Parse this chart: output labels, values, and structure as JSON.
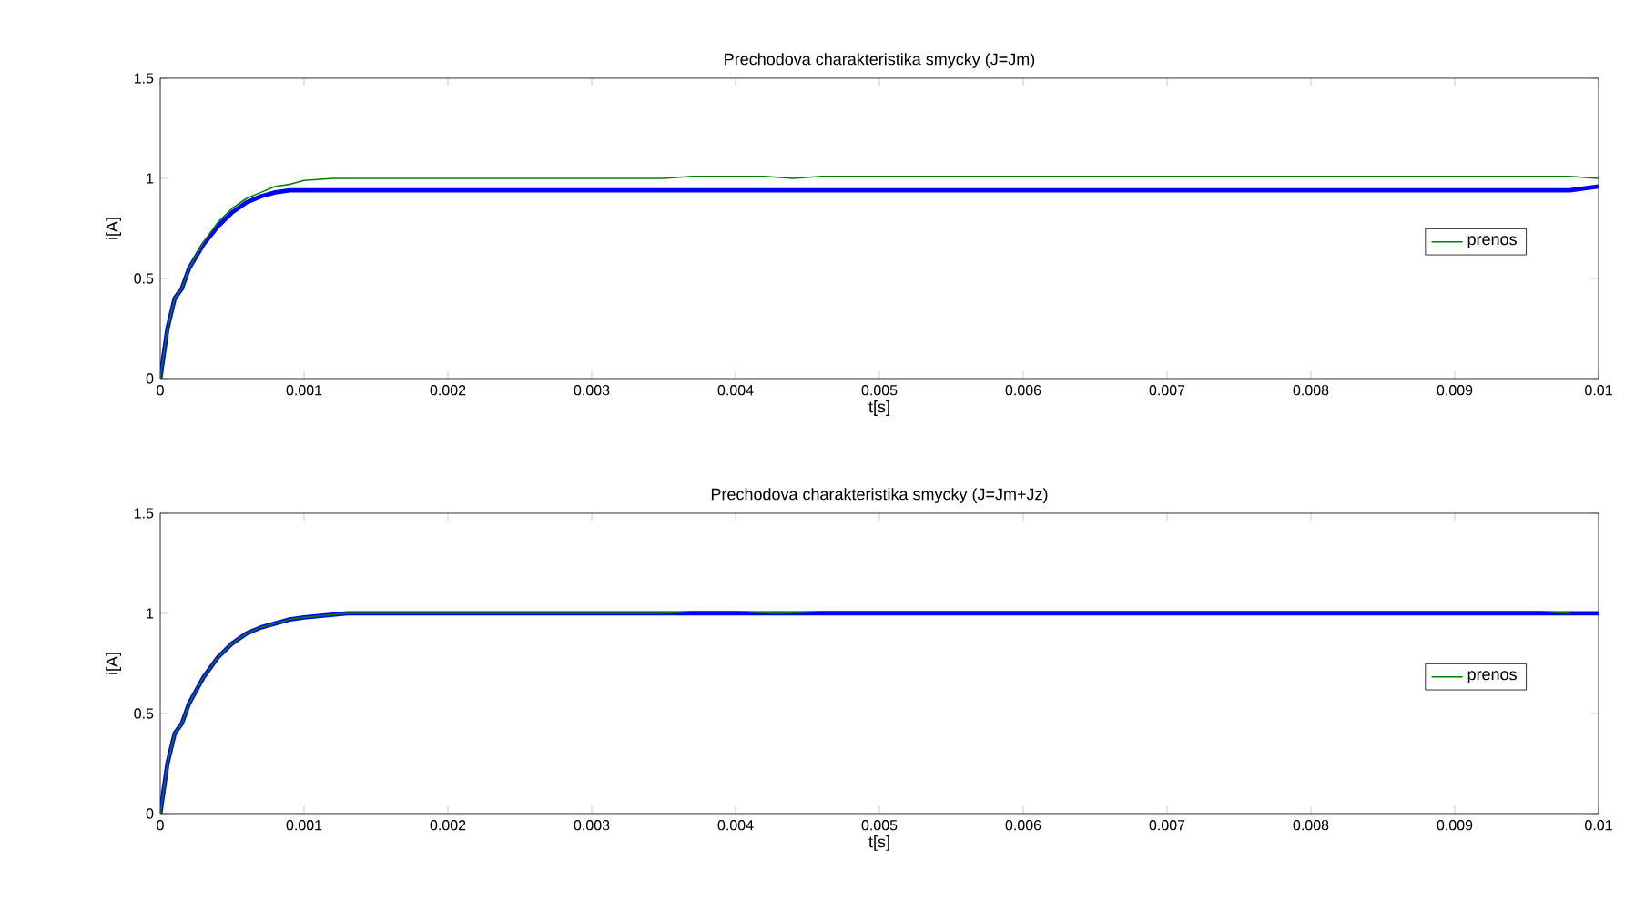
{
  "chart_data": [
    {
      "type": "line",
      "title": "Prechodova charakteristika smycky (J=Jm)",
      "xlabel": "t[s]",
      "ylabel": "i[A]",
      "xlim": [
        0,
        0.01
      ],
      "ylim": [
        0,
        1.5
      ],
      "xticks": [
        0,
        0.001,
        0.002,
        0.003,
        0.004,
        0.005,
        0.006,
        0.007,
        0.008,
        0.009,
        0.01
      ],
      "yticks": [
        0,
        0.5,
        1,
        1.5
      ],
      "grid": false,
      "legend": "right",
      "series": [
        {
          "color": "#0000ff",
          "x": [
            0,
            2e-05,
            5e-05,
            0.0001,
            0.00015,
            0.0002,
            0.0003,
            0.0004,
            0.0005,
            0.0006,
            0.0007,
            0.0008,
            0.0009,
            0.001,
            0.0098,
            0.01
          ],
          "values": [
            0,
            0.1,
            0.25,
            0.4,
            0.45,
            0.55,
            0.67,
            0.76,
            0.83,
            0.88,
            0.91,
            0.93,
            0.94,
            0.94,
            0.94,
            0.96
          ]
        },
        {
          "name": "prenos",
          "color": "#008000",
          "x": [
            0,
            2e-05,
            5e-05,
            0.0001,
            0.00015,
            0.0002,
            0.0003,
            0.0004,
            0.0005,
            0.0006,
            0.0007,
            0.0008,
            0.0009,
            0.001,
            0.0012,
            0.0035,
            0.0037,
            0.0042,
            0.0044,
            0.0046,
            0.0098,
            0.01
          ],
          "values": [
            0,
            0.1,
            0.25,
            0.4,
            0.45,
            0.55,
            0.68,
            0.78,
            0.85,
            0.9,
            0.93,
            0.96,
            0.97,
            0.99,
            1.0,
            1.0,
            1.01,
            1.01,
            1.0,
            1.01,
            1.01,
            1.0
          ]
        }
      ]
    },
    {
      "type": "line",
      "title": "Prechodova charakteristika smycky (J=Jm+Jz)",
      "xlabel": "t[s]",
      "ylabel": "i[A]",
      "xlim": [
        0,
        0.01
      ],
      "ylim": [
        0,
        1.5
      ],
      "xticks": [
        0,
        0.001,
        0.002,
        0.003,
        0.004,
        0.005,
        0.006,
        0.007,
        0.008,
        0.009,
        0.01
      ],
      "yticks": [
        0,
        0.5,
        1,
        1.5
      ],
      "grid": false,
      "legend": "right",
      "series": [
        {
          "color": "#0000ff",
          "x": [
            0,
            2e-05,
            5e-05,
            0.0001,
            0.00015,
            0.0002,
            0.0003,
            0.0004,
            0.0005,
            0.0006,
            0.0007,
            0.0008,
            0.0009,
            0.001,
            0.0013,
            0.01
          ],
          "values": [
            0,
            0.1,
            0.25,
            0.4,
            0.45,
            0.55,
            0.68,
            0.78,
            0.85,
            0.9,
            0.93,
            0.95,
            0.97,
            0.98,
            1.0,
            1.0
          ]
        },
        {
          "name": "prenos",
          "color": "#008000",
          "x": [
            0,
            2e-05,
            5e-05,
            0.0001,
            0.00015,
            0.0002,
            0.0003,
            0.0004,
            0.0005,
            0.0006,
            0.0007,
            0.0008,
            0.0009,
            0.001,
            0.0013,
            0.0035,
            0.0037,
            0.004,
            0.0043,
            0.0046,
            0.0096,
            0.0098
          ],
          "values": [
            0,
            0.1,
            0.25,
            0.4,
            0.45,
            0.55,
            0.68,
            0.78,
            0.85,
            0.9,
            0.93,
            0.95,
            0.97,
            0.98,
            1.0,
            1.0,
            1.01,
            1.01,
            1.0,
            1.01,
            1.01,
            1.0
          ]
        }
      ]
    }
  ]
}
